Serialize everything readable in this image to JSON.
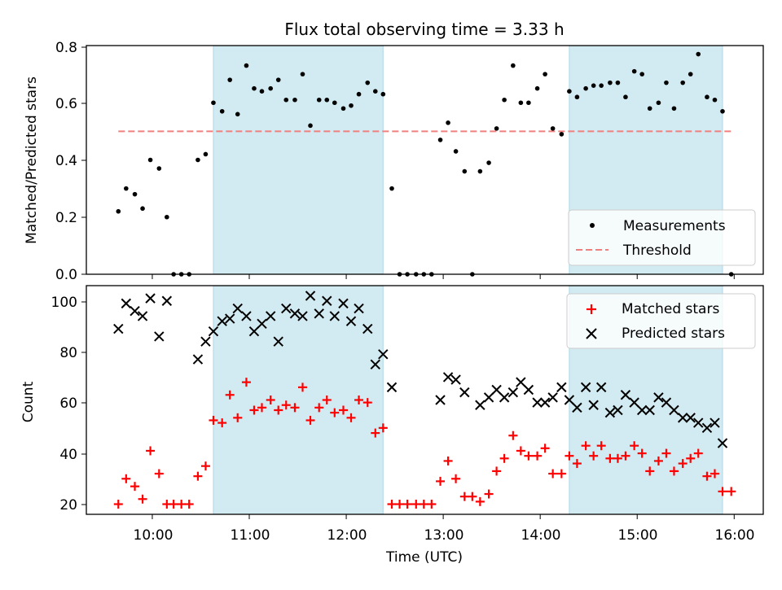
{
  "title": "Flux total observing time = 3.33 h",
  "colors": {
    "shade": "#add8e6",
    "measurements": "#000000",
    "threshold": "#f08080",
    "matched": "#ff0000",
    "predicted": "#000000"
  },
  "top": {
    "ylabel": "Matched/Predicted stars",
    "ytick_labels": [
      "0.0",
      "0.2",
      "0.4",
      "0.6",
      "0.8"
    ],
    "legend": {
      "measurements": "Measurements",
      "threshold": "Threshold"
    }
  },
  "bottom": {
    "ylabel": "Count",
    "xlabel": "Time (UTC)",
    "ytick_labels": [
      "20",
      "40",
      "60",
      "80",
      "100"
    ],
    "legend": {
      "matched": "Matched stars",
      "predicted": "Predicted stars"
    }
  },
  "xtick_labels": [
    "10:00",
    "11:00",
    "12:00",
    "13:00",
    "14:00",
    "15:00",
    "16:00"
  ],
  "chart_data": [
    {
      "type": "scatter",
      "title": "Flux total observing time = 3.33 h",
      "xlabel": "",
      "ylabel": "Matched/Predicted stars",
      "x_unit": "hours UTC",
      "xlim": [
        9.32,
        16.3
      ],
      "ylim": [
        0.0,
        0.8
      ],
      "xticks": [
        10,
        11,
        12,
        13,
        14,
        15,
        16
      ],
      "yticks": [
        0.0,
        0.2,
        0.4,
        0.6,
        0.8
      ],
      "shaded_intervals": [
        [
          10.63,
          12.38
        ],
        [
          14.3,
          15.88
        ]
      ],
      "threshold": {
        "name": "Threshold",
        "y": 0.5,
        "x": [
          9.65,
          15.98
        ],
        "style": "dashed"
      },
      "legend_position": "lower right",
      "series": [
        {
          "name": "Measurements",
          "points": [
            [
              9.65,
              0.22
            ],
            [
              9.73,
              0.3
            ],
            [
              9.82,
              0.28
            ],
            [
              9.9,
              0.23
            ],
            [
              9.98,
              0.4
            ],
            [
              10.07,
              0.37
            ],
            [
              10.15,
              0.2
            ],
            [
              10.22,
              0.0
            ],
            [
              10.3,
              0.0
            ],
            [
              10.38,
              0.0
            ],
            [
              10.47,
              0.4
            ],
            [
              10.55,
              0.42
            ],
            [
              10.63,
              0.6
            ],
            [
              10.72,
              0.57
            ],
            [
              10.8,
              0.68
            ],
            [
              10.88,
              0.56
            ],
            [
              10.97,
              0.73
            ],
            [
              11.05,
              0.65
            ],
            [
              11.13,
              0.64
            ],
            [
              11.22,
              0.65
            ],
            [
              11.3,
              0.68
            ],
            [
              11.38,
              0.61
            ],
            [
              11.47,
              0.61
            ],
            [
              11.55,
              0.7
            ],
            [
              11.63,
              0.52
            ],
            [
              11.72,
              0.61
            ],
            [
              11.8,
              0.61
            ],
            [
              11.88,
              0.6
            ],
            [
              11.97,
              0.58
            ],
            [
              12.05,
              0.59
            ],
            [
              12.13,
              0.63
            ],
            [
              12.22,
              0.67
            ],
            [
              12.3,
              0.64
            ],
            [
              12.38,
              0.63
            ],
            [
              12.47,
              0.3
            ],
            [
              12.55,
              0.0
            ],
            [
              12.63,
              0.0
            ],
            [
              12.72,
              0.0
            ],
            [
              12.8,
              0.0
            ],
            [
              12.88,
              0.0
            ],
            [
              12.97,
              0.47
            ],
            [
              13.05,
              0.53
            ],
            [
              13.13,
              0.43
            ],
            [
              13.22,
              0.36
            ],
            [
              13.3,
              0.0
            ],
            [
              13.38,
              0.36
            ],
            [
              13.47,
              0.39
            ],
            [
              13.55,
              0.51
            ],
            [
              13.63,
              0.61
            ],
            [
              13.72,
              0.73
            ],
            [
              13.8,
              0.6
            ],
            [
              13.88,
              0.6
            ],
            [
              13.97,
              0.65
            ],
            [
              14.05,
              0.7
            ],
            [
              14.13,
              0.51
            ],
            [
              14.22,
              0.49
            ],
            [
              14.3,
              0.64
            ],
            [
              14.38,
              0.62
            ],
            [
              14.47,
              0.65
            ],
            [
              14.55,
              0.66
            ],
            [
              14.63,
              0.66
            ],
            [
              14.72,
              0.67
            ],
            [
              14.8,
              0.67
            ],
            [
              14.88,
              0.62
            ],
            [
              14.97,
              0.71
            ],
            [
              15.05,
              0.7
            ],
            [
              15.13,
              0.58
            ],
            [
              15.22,
              0.6
            ],
            [
              15.3,
              0.67
            ],
            [
              15.38,
              0.58
            ],
            [
              15.47,
              0.67
            ],
            [
              15.55,
              0.7
            ],
            [
              15.63,
              0.77
            ],
            [
              15.72,
              0.62
            ],
            [
              15.8,
              0.61
            ],
            [
              15.88,
              0.57
            ],
            [
              15.97,
              0.0
            ]
          ]
        }
      ]
    },
    {
      "type": "scatter",
      "title": "",
      "xlabel": "Time (UTC)",
      "ylabel": "Count",
      "x_unit": "hours UTC",
      "xlim": [
        9.32,
        16.3
      ],
      "ylim": [
        16,
        106
      ],
      "xticks": [
        10,
        11,
        12,
        13,
        14,
        15,
        16
      ],
      "yticks": [
        20,
        40,
        60,
        80,
        100
      ],
      "shaded_intervals": [
        [
          10.63,
          12.38
        ],
        [
          14.3,
          15.88
        ]
      ],
      "legend_position": "upper right",
      "series": [
        {
          "name": "Matched stars",
          "marker": "+",
          "points": [
            [
              9.65,
              20
            ],
            [
              9.73,
              30
            ],
            [
              9.82,
              27
            ],
            [
              9.9,
              22
            ],
            [
              9.98,
              41
            ],
            [
              10.07,
              32
            ],
            [
              10.15,
              20
            ],
            [
              10.22,
              20
            ],
            [
              10.3,
              20
            ],
            [
              10.38,
              20
            ],
            [
              10.47,
              31
            ],
            [
              10.55,
              35
            ],
            [
              10.63,
              53
            ],
            [
              10.72,
              52
            ],
            [
              10.8,
              63
            ],
            [
              10.88,
              54
            ],
            [
              10.97,
              68
            ],
            [
              11.05,
              57
            ],
            [
              11.13,
              58
            ],
            [
              11.22,
              61
            ],
            [
              11.3,
              57
            ],
            [
              11.38,
              59
            ],
            [
              11.47,
              58
            ],
            [
              11.55,
              66
            ],
            [
              11.63,
              53
            ],
            [
              11.72,
              58
            ],
            [
              11.8,
              61
            ],
            [
              11.88,
              56
            ],
            [
              11.97,
              57
            ],
            [
              12.05,
              54
            ],
            [
              12.13,
              61
            ],
            [
              12.22,
              60
            ],
            [
              12.3,
              48
            ],
            [
              12.38,
              50
            ],
            [
              12.47,
              20
            ],
            [
              12.55,
              20
            ],
            [
              12.63,
              20
            ],
            [
              12.72,
              20
            ],
            [
              12.8,
              20
            ],
            [
              12.88,
              20
            ],
            [
              12.97,
              29
            ],
            [
              13.05,
              37
            ],
            [
              13.13,
              30
            ],
            [
              13.22,
              23
            ],
            [
              13.3,
              23
            ],
            [
              13.38,
              21
            ],
            [
              13.47,
              24
            ],
            [
              13.55,
              33
            ],
            [
              13.63,
              38
            ],
            [
              13.72,
              47
            ],
            [
              13.8,
              41
            ],
            [
              13.88,
              39
            ],
            [
              13.97,
              39
            ],
            [
              14.05,
              42
            ],
            [
              14.13,
              32
            ],
            [
              14.22,
              32
            ],
            [
              14.3,
              39
            ],
            [
              14.38,
              36
            ],
            [
              14.47,
              43
            ],
            [
              14.55,
              39
            ],
            [
              14.63,
              43
            ],
            [
              14.72,
              38
            ],
            [
              14.8,
              38
            ],
            [
              14.88,
              39
            ],
            [
              14.97,
              43
            ],
            [
              15.05,
              40
            ],
            [
              15.13,
              33
            ],
            [
              15.22,
              37
            ],
            [
              15.3,
              40
            ],
            [
              15.38,
              33
            ],
            [
              15.47,
              36
            ],
            [
              15.55,
              38
            ],
            [
              15.63,
              40
            ],
            [
              15.72,
              31
            ],
            [
              15.8,
              32
            ],
            [
              15.88,
              25
            ],
            [
              15.97,
              25
            ]
          ]
        },
        {
          "name": "Predicted stars",
          "marker": "x",
          "points": [
            [
              9.65,
              89
            ],
            [
              9.73,
              99
            ],
            [
              9.82,
              96
            ],
            [
              9.9,
              94
            ],
            [
              9.98,
              101
            ],
            [
              10.07,
              86
            ],
            [
              10.15,
              100
            ],
            [
              10.47,
              77
            ],
            [
              10.55,
              84
            ],
            [
              10.63,
              88
            ],
            [
              10.72,
              92
            ],
            [
              10.8,
              93
            ],
            [
              10.88,
              97
            ],
            [
              10.97,
              94
            ],
            [
              11.05,
              88
            ],
            [
              11.13,
              91
            ],
            [
              11.22,
              94
            ],
            [
              11.3,
              84
            ],
            [
              11.38,
              97
            ],
            [
              11.47,
              95
            ],
            [
              11.55,
              94
            ],
            [
              11.63,
              102
            ],
            [
              11.72,
              95
            ],
            [
              11.8,
              100
            ],
            [
              11.88,
              94
            ],
            [
              11.97,
              99
            ],
            [
              12.05,
              92
            ],
            [
              12.13,
              97
            ],
            [
              12.22,
              89
            ],
            [
              12.3,
              75
            ],
            [
              12.38,
              79
            ],
            [
              12.47,
              66
            ],
            [
              12.97,
              61
            ],
            [
              13.05,
              70
            ],
            [
              13.13,
              69
            ],
            [
              13.22,
              64
            ],
            [
              13.38,
              59
            ],
            [
              13.47,
              62
            ],
            [
              13.55,
              65
            ],
            [
              13.63,
              62
            ],
            [
              13.72,
              64
            ],
            [
              13.8,
              68
            ],
            [
              13.88,
              65
            ],
            [
              13.97,
              60
            ],
            [
              14.05,
              60
            ],
            [
              14.13,
              62
            ],
            [
              14.22,
              66
            ],
            [
              14.3,
              61
            ],
            [
              14.38,
              58
            ],
            [
              14.47,
              66
            ],
            [
              14.55,
              59
            ],
            [
              14.63,
              66
            ],
            [
              14.72,
              56
            ],
            [
              14.8,
              57
            ],
            [
              14.88,
              63
            ],
            [
              14.97,
              60
            ],
            [
              15.05,
              57
            ],
            [
              15.13,
              57
            ],
            [
              15.22,
              62
            ],
            [
              15.3,
              60
            ],
            [
              15.38,
              57
            ],
            [
              15.47,
              54
            ],
            [
              15.55,
              54
            ],
            [
              15.63,
              52
            ],
            [
              15.72,
              50
            ],
            [
              15.8,
              52
            ],
            [
              15.88,
              44
            ]
          ]
        }
      ]
    }
  ]
}
